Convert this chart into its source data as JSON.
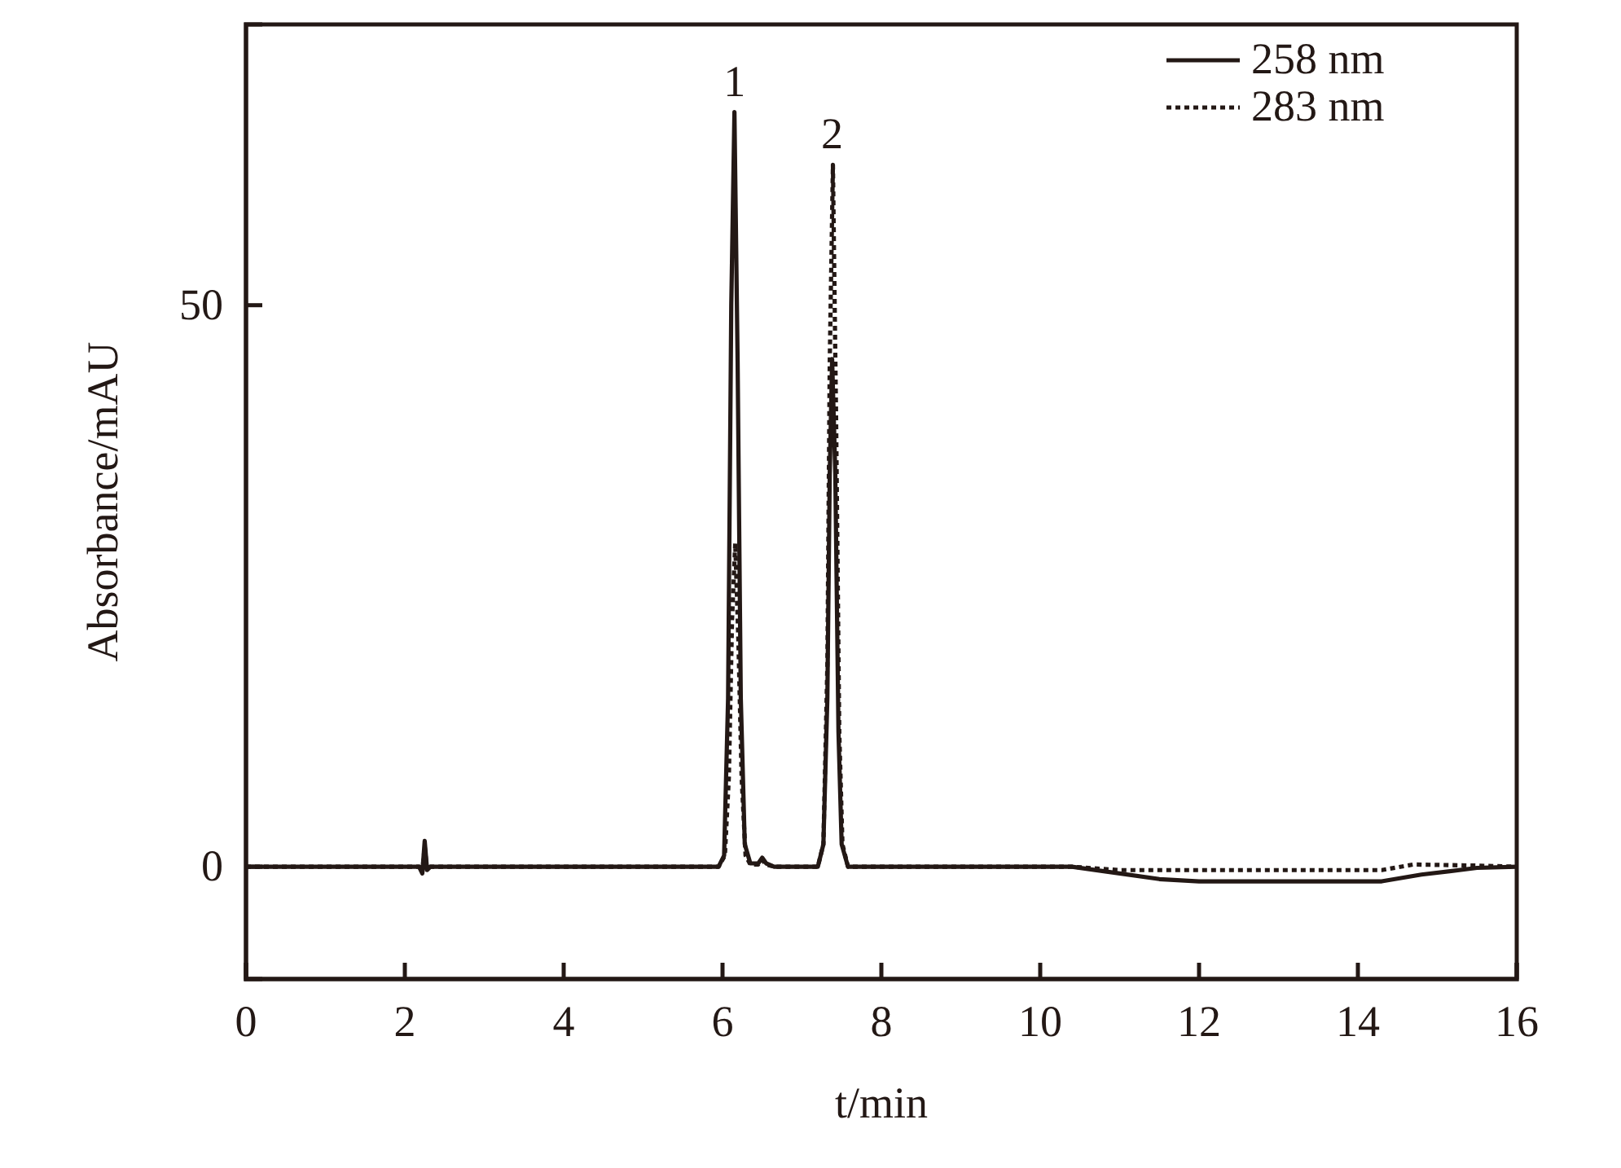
{
  "chart_data": {
    "type": "line",
    "xlabel": "t/min",
    "ylabel": "Absorbance/mAU",
    "xlim": [
      0,
      16
    ],
    "ylim": [
      -10,
      75
    ],
    "xticks": [
      0,
      2,
      4,
      6,
      8,
      10,
      12,
      14,
      16
    ],
    "yticks": [
      0,
      50
    ],
    "grid": false,
    "legend": "top right",
    "annotations": [
      {
        "text": "1",
        "x": 6.15,
        "y": 67.2
      },
      {
        "text": "2",
        "x": 7.38,
        "y": 62.5
      }
    ],
    "series": [
      {
        "name": "258 nm",
        "color": "#231815",
        "line_style": "solid",
        "x": [
          0,
          2.18,
          2.22,
          2.25,
          2.28,
          2.32,
          5.95,
          6.02,
          6.07,
          6.11,
          6.15,
          6.19,
          6.23,
          6.28,
          6.35,
          6.45,
          6.5,
          6.55,
          6.65,
          7.2,
          7.27,
          7.32,
          7.35,
          7.38,
          7.42,
          7.46,
          7.5,
          7.58,
          10.4,
          10.8,
          11.5,
          12,
          14.3,
          14.8,
          15.5,
          16
        ],
        "values": [
          0,
          0,
          -0.6,
          2.3,
          -0.3,
          0,
          0,
          1,
          15,
          50,
          67.2,
          45,
          15,
          2,
          0.3,
          0.3,
          0.8,
          0.3,
          0,
          0,
          2,
          15,
          35,
          45.2,
          35,
          12,
          2,
          0,
          0,
          -0.4,
          -1.1,
          -1.3,
          -1.3,
          -0.7,
          -0.1,
          0
        ]
      },
      {
        "name": "283 nm",
        "color": "#231815",
        "line_style": "dotted",
        "x": [
          0,
          2.18,
          2.22,
          2.25,
          2.28,
          2.32,
          5.95,
          6.03,
          6.08,
          6.12,
          6.16,
          6.2,
          6.24,
          6.29,
          6.35,
          6.45,
          6.5,
          6.55,
          6.65,
          7.2,
          7.27,
          7.32,
          7.35,
          7.39,
          7.43,
          7.47,
          7.51,
          7.58,
          10.4,
          11,
          14.3,
          14.7,
          15.5,
          16
        ],
        "values": [
          0,
          0,
          -0.5,
          1.8,
          -0.3,
          0,
          0,
          1,
          8,
          22,
          28.8,
          20,
          8,
          1,
          0.2,
          0.2,
          0.6,
          0.2,
          0,
          0,
          2,
          18,
          45,
          62.5,
          40,
          12,
          2,
          0,
          0,
          -0.3,
          -0.3,
          0.2,
          0.1,
          0
        ]
      }
    ]
  }
}
